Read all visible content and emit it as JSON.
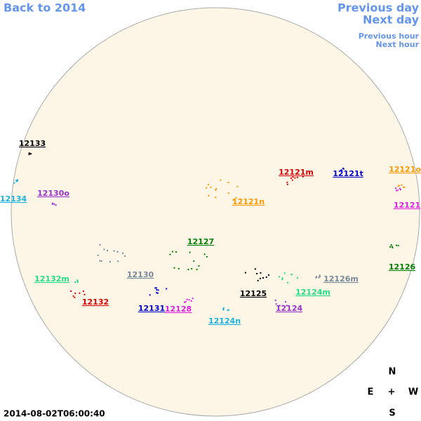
{
  "navigation": {
    "back": "Back to 2014",
    "previous_day": "Previous day",
    "next_day": "Next day",
    "previous_hour": "Previous hour",
    "next_hour": "Next hour"
  },
  "timestamp": "2014-08-02T06:00:40",
  "compass": {
    "north": "N",
    "east": "E",
    "center": "+",
    "west": "W",
    "south": "S"
  },
  "regions": [
    {
      "label": "12133",
      "color": "#000000"
    },
    {
      "label": "12134",
      "color": "#1ab2e0"
    },
    {
      "label": "12130o",
      "color": "#9933cc"
    },
    {
      "label": "12121m",
      "color": "#dd0000"
    },
    {
      "label": "12121t",
      "color": "#0000cc"
    },
    {
      "label": "12121o",
      "color": "#ff9900"
    },
    {
      "label": "12121n",
      "color": "#ff9900"
    },
    {
      "label": "12121",
      "color": "#e020e0"
    },
    {
      "label": "12127",
      "color": "#008000"
    },
    {
      "label": "12126",
      "color": "#008000"
    },
    {
      "label": "12132m",
      "color": "#22dd88"
    },
    {
      "label": "12130",
      "color": "#778899"
    },
    {
      "label": "12126m",
      "color": "#778899"
    },
    {
      "label": "12125",
      "color": "#000000"
    },
    {
      "label": "12124m",
      "color": "#22dd88"
    },
    {
      "label": "12132",
      "color": "#dd0000"
    },
    {
      "label": "12131",
      "color": "#0000cc"
    },
    {
      "label": "12128",
      "color": "#e020e0"
    },
    {
      "label": "12124",
      "color": "#9933cc"
    },
    {
      "label": "12124n",
      "color": "#1ab2e0"
    }
  ]
}
